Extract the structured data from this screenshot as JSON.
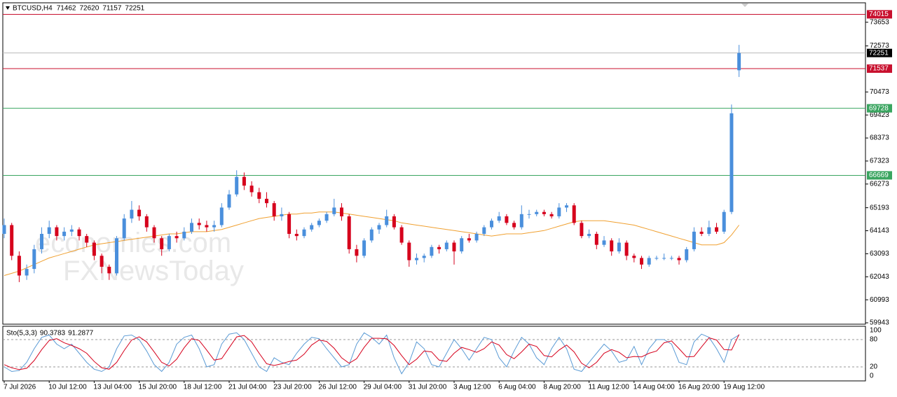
{
  "chart_data": {
    "type": "candlestick",
    "symbol": "BTCUSD,H4",
    "watermark": [
      "economies.com",
      "FXNewsToday"
    ],
    "up_color": "#4a8fdc",
    "down_color": "#d6001c",
    "ylim": [
      59880,
      74540
    ],
    "yticks": [
      73653,
      72573,
      70473,
      69423,
      68373,
      67323,
      66273,
      65193,
      64143,
      63093,
      62043,
      60993,
      59943
    ],
    "levels": [
      {
        "value": 74015,
        "color": "#c8102e"
      },
      {
        "value": 72251,
        "color": "#000000"
      },
      {
        "value": 71537,
        "color": "#c8102e"
      },
      {
        "value": 69728,
        "color": "#3aa560"
      },
      {
        "value": 66669,
        "color": "#3aa560"
      }
    ],
    "categories": [
      "7 Jul 2026",
      null,
      null,
      null,
      null,
      null,
      "10 Jul 12:00",
      null,
      null,
      null,
      null,
      null,
      "13 Jul 04:00",
      null,
      null,
      null,
      null,
      null,
      "15 Jul 20:00",
      null,
      null,
      null,
      null,
      null,
      "18 Jul 12:00",
      null,
      null,
      null,
      null,
      null,
      "21 Jul 04:00",
      null,
      null,
      null,
      null,
      null,
      "23 Jul 20:00",
      null,
      null,
      null,
      null,
      null,
      "26 Jul 12:00",
      null,
      null,
      null,
      null,
      null,
      "29 Jul 04:00",
      null,
      null,
      null,
      null,
      null,
      "31 Jul 20:00",
      null,
      null,
      null,
      null,
      null,
      "3 Aug 12:00",
      null,
      null,
      null,
      null,
      null,
      "6 Aug 04:00",
      null,
      null,
      null,
      null,
      null,
      "8 Aug 20:00",
      null,
      null,
      null,
      null,
      null,
      "11 Aug 12:00",
      null,
      null,
      null,
      null,
      null,
      "14 Aug 04:00",
      null,
      null,
      null,
      null,
      null,
      "16 Aug 20:00",
      null,
      null,
      null,
      null,
      null,
      "19 Aug 12:00",
      null,
      null
    ],
    "candles": [
      [
        64000,
        64700,
        63800,
        64400
      ],
      [
        64400,
        64500,
        62800,
        63000
      ],
      [
        63000,
        63200,
        61800,
        62100
      ],
      [
        62100,
        62600,
        61900,
        62400
      ],
      [
        62400,
        63500,
        62200,
        63300
      ],
      [
        63300,
        64300,
        63100,
        64000
      ],
      [
        64000,
        64600,
        63800,
        64300
      ],
      [
        64300,
        64400,
        63700,
        63900
      ],
      [
        63900,
        64300,
        63700,
        64100
      ],
      [
        64100,
        64400,
        63900,
        64200
      ],
      [
        64200,
        64300,
        63700,
        63900
      ],
      [
        63900,
        64000,
        63400,
        63600
      ],
      [
        63600,
        63700,
        62800,
        63000
      ],
      [
        63000,
        63100,
        62200,
        62500
      ],
      [
        62500,
        62600,
        61900,
        62200
      ],
      [
        62200,
        63900,
        62100,
        63800
      ],
      [
        63800,
        64900,
        63700,
        64700
      ],
      [
        64700,
        65500,
        64500,
        65100
      ],
      [
        65100,
        65300,
        64600,
        64800
      ],
      [
        64800,
        64900,
        64100,
        64300
      ],
      [
        64300,
        64400,
        63600,
        63800
      ],
      [
        63800,
        63900,
        63000,
        63300
      ],
      [
        63300,
        64000,
        63200,
        63900
      ],
      [
        63900,
        64100,
        63600,
        63800
      ],
      [
        63800,
        64300,
        63700,
        64100
      ],
      [
        64100,
        64700,
        64000,
        64500
      ],
      [
        64500,
        64700,
        64200,
        64400
      ],
      [
        64400,
        64600,
        64100,
        64300
      ],
      [
        64300,
        64600,
        64100,
        64400
      ],
      [
        64400,
        65400,
        64300,
        65200
      ],
      [
        65200,
        66000,
        65100,
        65800
      ],
      [
        65800,
        66900,
        65700,
        66600
      ],
      [
        66600,
        66800,
        66000,
        66200
      ],
      [
        66200,
        66400,
        65700,
        65900
      ],
      [
        65900,
        66100,
        65400,
        65600
      ],
      [
        65600,
        65900,
        65200,
        65400
      ],
      [
        65400,
        65500,
        64600,
        64800
      ],
      [
        64800,
        65200,
        64600,
        64900
      ],
      [
        64900,
        65000,
        63800,
        64000
      ],
      [
        64000,
        64200,
        63700,
        63900
      ],
      [
        63900,
        64300,
        63800,
        64200
      ],
      [
        64200,
        64500,
        64100,
        64400
      ],
      [
        64400,
        64700,
        64300,
        64600
      ],
      [
        64600,
        65000,
        64500,
        64900
      ],
      [
        64900,
        65600,
        64800,
        65200
      ],
      [
        65200,
        65400,
        64600,
        64800
      ],
      [
        64800,
        64900,
        63100,
        63300
      ],
      [
        63300,
        63500,
        62700,
        63000
      ],
      [
        63000,
        63800,
        62900,
        63700
      ],
      [
        63700,
        64300,
        63600,
        64200
      ],
      [
        64200,
        64500,
        64000,
        64400
      ],
      [
        64400,
        65100,
        64300,
        64800
      ],
      [
        64800,
        64900,
        64200,
        64300
      ],
      [
        64300,
        64400,
        63500,
        63600
      ],
      [
        63600,
        63700,
        62500,
        62800
      ],
      [
        62800,
        63100,
        62600,
        62900
      ],
      [
        62900,
        63100,
        62700,
        63000
      ],
      [
        63000,
        63500,
        62900,
        63400
      ],
      [
        63400,
        63500,
        63100,
        63300
      ],
      [
        63300,
        63700,
        63200,
        63600
      ],
      [
        63600,
        63700,
        62600,
        63200
      ],
      [
        63200,
        63900,
        63100,
        63800
      ],
      [
        63800,
        64000,
        63600,
        63700
      ],
      [
        63700,
        64100,
        63600,
        64000
      ],
      [
        64000,
        64400,
        63900,
        64300
      ],
      [
        64300,
        64700,
        64200,
        64600
      ],
      [
        64600,
        65000,
        64500,
        64800
      ],
      [
        64800,
        64900,
        64400,
        64500
      ],
      [
        64500,
        64600,
        64200,
        64300
      ],
      [
        64300,
        65300,
        64200,
        64900
      ],
      [
        64900,
        65100,
        64700,
        64900
      ],
      [
        64900,
        65100,
        64800,
        65000
      ],
      [
        65000,
        65100,
        64800,
        64900
      ],
      [
        64900,
        65000,
        64700,
        64800
      ],
      [
        64800,
        65400,
        64700,
        65200
      ],
      [
        65200,
        65400,
        65000,
        65300
      ],
      [
        65300,
        65400,
        64400,
        64500
      ],
      [
        64500,
        64600,
        63800,
        63900
      ],
      [
        63900,
        64200,
        63800,
        64000
      ],
      [
        64000,
        64100,
        63300,
        63500
      ],
      [
        63500,
        63900,
        63400,
        63700
      ],
      [
        63700,
        63800,
        63000,
        63200
      ],
      [
        63200,
        63800,
        63100,
        63600
      ],
      [
        63600,
        63700,
        62800,
        63000
      ],
      [
        63000,
        63100,
        62700,
        62900
      ],
      [
        62900,
        63000,
        62400,
        62600
      ],
      [
        62600,
        63000,
        62500,
        62900
      ],
      [
        62900,
        63000,
        62800,
        62900
      ],
      [
        62900,
        63100,
        62800,
        62900
      ],
      [
        62900,
        63000,
        62800,
        62900
      ],
      [
        62900,
        63000,
        62600,
        62800
      ],
      [
        62800,
        63400,
        62700,
        63300
      ],
      [
        63300,
        64300,
        63200,
        64100
      ],
      [
        64100,
        64300,
        63900,
        64000
      ],
      [
        64000,
        64600,
        63900,
        64300
      ],
      [
        64300,
        64500,
        64000,
        64100
      ],
      [
        64100,
        65100,
        64000,
        65000
      ],
      [
        65000,
        69900,
        64900,
        69500
      ],
      [
        71462,
        72620,
        71157,
        72251
      ]
    ],
    "ma": {
      "color": "#f0a030",
      "values": [
        62100,
        62200,
        62300,
        62450,
        62600,
        62750,
        62900,
        63000,
        63100,
        63200,
        63300,
        63400,
        63500,
        63550,
        63600,
        63650,
        63700,
        63750,
        63800,
        63850,
        63900,
        63950,
        64000,
        64000,
        64050,
        64100,
        64100,
        64100,
        64150,
        64200,
        64300,
        64400,
        64500,
        64600,
        64700,
        64750,
        64800,
        64850,
        64900,
        64900,
        64950,
        64950,
        65000,
        65000,
        65000,
        64950,
        64900,
        64850,
        64800,
        64750,
        64700,
        64650,
        64600,
        64500,
        64450,
        64400,
        64350,
        64300,
        64250,
        64200,
        64150,
        64100,
        64050,
        64000,
        63950,
        63900,
        63950,
        64000,
        64000,
        64000,
        64050,
        64100,
        64150,
        64250,
        64350,
        64450,
        64550,
        64600,
        64600,
        64600,
        64600,
        64550,
        64500,
        64450,
        64400,
        64300,
        64200,
        64100,
        64000,
        63900,
        63800,
        63700,
        63600,
        63500,
        63500,
        63500,
        63600,
        63950,
        64400
      ]
    },
    "stochastic": {
      "label": "Sto(5,3,3)",
      "ylim": [
        0,
        100
      ],
      "yticks": [
        100,
        80,
        20,
        0
      ],
      "main": {
        "color": "#5b9bd5",
        "values": [
          20,
          10,
          12,
          30,
          60,
          85,
          90,
          70,
          60,
          70,
          50,
          30,
          15,
          10,
          20,
          60,
          88,
          90,
          80,
          55,
          25,
          10,
          30,
          70,
          85,
          90,
          60,
          20,
          25,
          70,
          92,
          95,
          80,
          50,
          20,
          10,
          40,
          30,
          25,
          50,
          70,
          85,
          82,
          60,
          40,
          20,
          25,
          70,
          95,
          85,
          70,
          90,
          40,
          5,
          30,
          75,
          60,
          25,
          20,
          50,
          80,
          60,
          35,
          60,
          85,
          80,
          40,
          20,
          55,
          85,
          70,
          40,
          25,
          60,
          85,
          60,
          15,
          10,
          30,
          50,
          70,
          55,
          30,
          35,
          65,
          25,
          60,
          80,
          80,
          70,
          30,
          25,
          75,
          92,
          85,
          60,
          30,
          80,
          90.3783
        ]
      },
      "signal": {
        "color": "#d6001c",
        "values": [
          25,
          18,
          14,
          17,
          34,
          58,
          78,
          82,
          73,
          67,
          60,
          50,
          32,
          18,
          15,
          30,
          56,
          79,
          86,
          75,
          53,
          30,
          22,
          37,
          62,
          82,
          78,
          57,
          35,
          38,
          62,
          86,
          89,
          75,
          50,
          27,
          23,
          27,
          32,
          35,
          48,
          68,
          79,
          76,
          61,
          40,
          28,
          38,
          63,
          83,
          83,
          82,
          67,
          45,
          25,
          37,
          55,
          53,
          35,
          32,
          50,
          63,
          58,
          52,
          60,
          75,
          68,
          47,
          38,
          53,
          70,
          65,
          45,
          42,
          57,
          68,
          53,
          28,
          18,
          30,
          50,
          58,
          52,
          40,
          43,
          42,
          50,
          55,
          73,
          77,
          60,
          42,
          43,
          64,
          84,
          79,
          58,
          57,
          91.2877
        ]
      }
    }
  }
}
